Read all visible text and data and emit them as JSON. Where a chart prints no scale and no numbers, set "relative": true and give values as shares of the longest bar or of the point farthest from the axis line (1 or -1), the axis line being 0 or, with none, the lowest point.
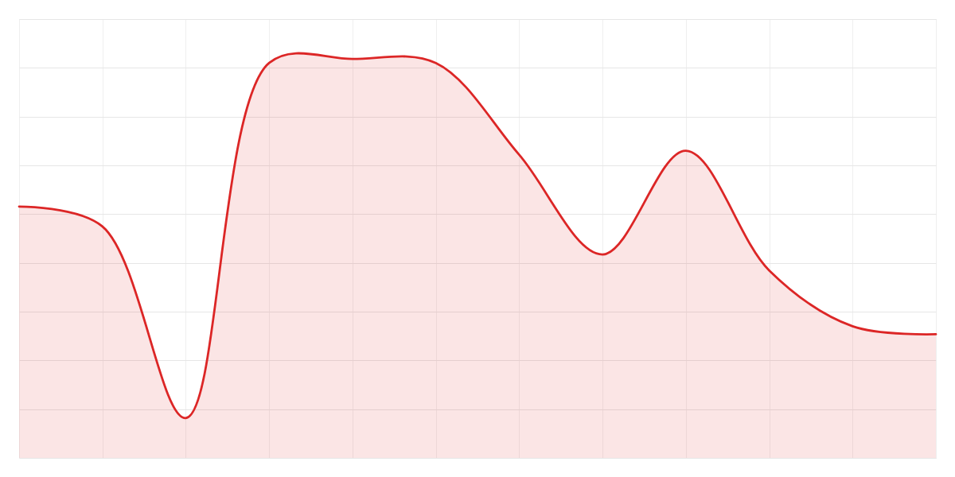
{
  "chart_data": {
    "type": "area",
    "categories": [
      null,
      null,
      null,
      null,
      null,
      null,
      null,
      null,
      null,
      null,
      null,
      null
    ],
    "series": [
      {
        "color": "#dc2626",
        "values": [
          0.63,
          0.58,
          0.1,
          0.99,
          1,
          0.99,
          0.76,
          0.51,
          0.77,
          0.47,
          0.33,
          0.31
        ]
      }
    ],
    "relative": true,
    "grid": true
  }
}
